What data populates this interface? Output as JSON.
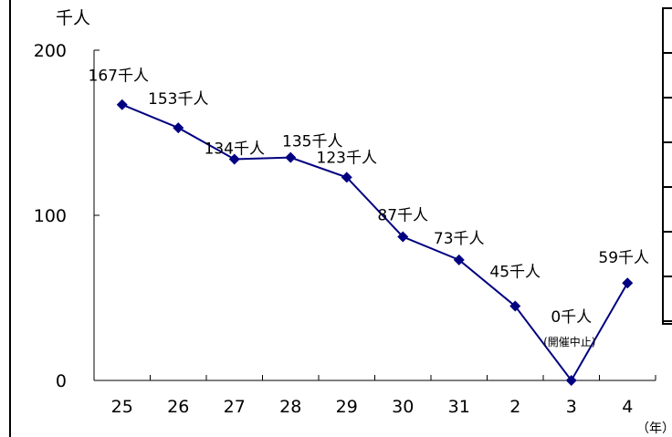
{
  "chart_data": {
    "type": "line",
    "ylabel": "千人",
    "xlabel": "（年）",
    "ylim": [
      0,
      200
    ],
    "yticks": [
      0,
      100,
      200
    ],
    "categories": [
      "25",
      "26",
      "27",
      "28",
      "29",
      "30",
      "31",
      "2",
      "3",
      "4"
    ],
    "series": [
      {
        "values": [
          167,
          153,
          134,
          135,
          123,
          87,
          73,
          45,
          0,
          59
        ],
        "labels": [
          "167千人",
          "153千人",
          "134千人",
          "135千人",
          "123千人",
          "87千人",
          "73千人",
          "45千人",
          "0千人",
          "59千人"
        ]
      }
    ],
    "annotations": [
      {
        "category": "3",
        "text": "(開催中止)"
      }
    ],
    "grid": false,
    "colors": {
      "line": "#000080",
      "marker": "#000080",
      "axis": "#000000"
    }
  }
}
